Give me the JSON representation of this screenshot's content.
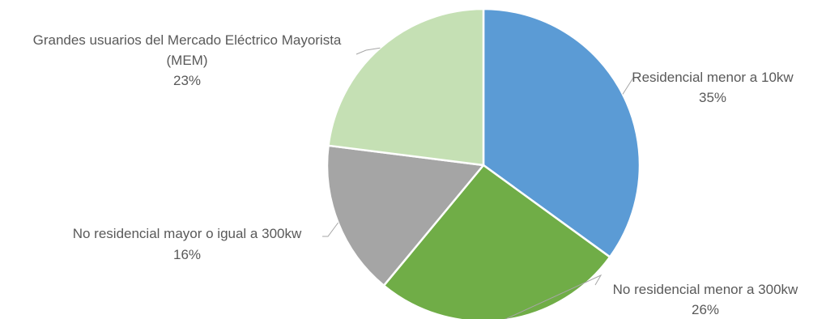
{
  "chart_data": {
    "type": "pie",
    "series": [
      {
        "values": [
          35,
          26,
          16,
          23
        ],
        "categories": [
          "Residencial menor a 10kw",
          "No residencial menor a 300kw",
          "No residencial mayor o igual a 300kw",
          "Grandes usuarios del Mercado Eléctrico Mayorista (MEM)"
        ]
      }
    ],
    "slices": [
      {
        "label": "Residencial menor a 10kw",
        "value": 35,
        "percent_label": "35%",
        "color": "#5b9bd5"
      },
      {
        "label": "No residencial menor a 300kw",
        "value": 26,
        "percent_label": "26%",
        "color": "#70ad47"
      },
      {
        "label": "No residencial mayor o igual a 300kw",
        "value": 16,
        "percent_label": "16%",
        "color": "#a5a5a5"
      },
      {
        "label": "Grandes usuarios del Mercado Eléctrico Mayorista (MEM)",
        "value": 23,
        "percent_label": "23%",
        "color": "#c5e0b4"
      }
    ],
    "labels_text": {
      "slice0": [
        "Residencial menor a 10kw",
        "35%"
      ],
      "slice1": [
        "No residencial menor a 300kw",
        "26%"
      ],
      "slice2": [
        "No residencial mayor o igual a 300kw",
        "16%"
      ],
      "slice3": [
        "Grandes usuarios del Mercado Eléctrico Mayorista",
        "(MEM)",
        "23%"
      ]
    },
    "start_angle_deg": 0,
    "direction": "clockwise",
    "leader_line_color": "#a6a6a6",
    "label_color": "#595959"
  }
}
